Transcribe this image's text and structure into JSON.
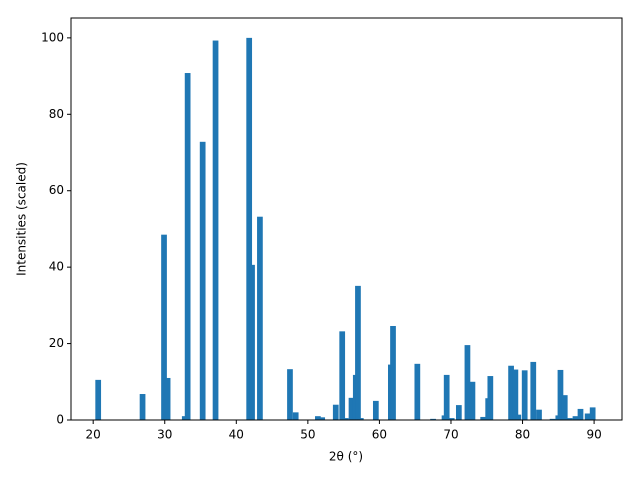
{
  "chart_data": {
    "type": "bar",
    "x_label": "2θ (°)",
    "y_label": "Intensities (scaled)",
    "x": [
      20.7,
      26.9,
      29.9,
      30.4,
      32.8,
      33.2,
      35.3,
      37.1,
      41.8,
      42.2,
      43.3,
      47.5,
      48.3,
      51.4,
      52.0,
      53.9,
      54.8,
      55.3,
      56.1,
      56.7,
      57.0,
      57.4,
      59.5,
      61.6,
      61.9,
      65.3,
      67.5,
      69.1,
      69.4,
      70.1,
      71.1,
      72.3,
      73.0,
      74.5,
      75.2,
      75.5,
      78.4,
      79.0,
      79.4,
      80.3,
      81.5,
      82.3,
      84.2,
      85.0,
      85.3,
      85.9,
      86.6,
      87.4,
      88.1,
      89.1,
      89.8
    ],
    "values": [
      10.5,
      6.8,
      48.5,
      11,
      1,
      90.8,
      72.8,
      99.3,
      100,
      40.6,
      53.2,
      13.3,
      2,
      1,
      0.7,
      4,
      23.2,
      0.5,
      5.8,
      11.8,
      35.1,
      0.5,
      5,
      14.5,
      24.6,
      14.7,
      0.3,
      1.2,
      11.8,
      0.5,
      3.9,
      19.6,
      10,
      0.8,
      5.7,
      11.5,
      14.2,
      13.2,
      1.4,
      13,
      15.2,
      2.7,
      0.3,
      1.2,
      13.1,
      6.5,
      0.5,
      1,
      2.9,
      1.7,
      3.3
    ],
    "color": "#1f77b4",
    "xlim": [
      16.9,
      93.9
    ],
    "xticks": [
      20,
      30,
      40,
      50,
      60,
      70,
      80,
      90
    ],
    "ylim": [
      0,
      105.2
    ],
    "yticks": [
      0,
      20,
      40,
      60,
      80,
      100
    ]
  }
}
